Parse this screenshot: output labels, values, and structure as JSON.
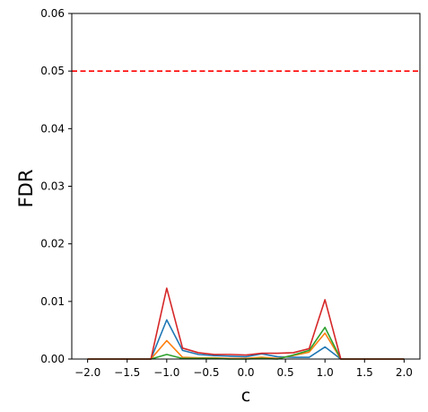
{
  "chart_data": {
    "type": "line",
    "title": "",
    "xlabel": "c",
    "ylabel": "FDR",
    "xlim": [
      -2.2,
      2.2
    ],
    "ylim": [
      0,
      0.06
    ],
    "xticks": [
      -2.0,
      -1.5,
      -1.0,
      -0.5,
      0.0,
      0.5,
      1.0,
      1.5,
      2.0
    ],
    "xtick_labels": [
      "−2.0",
      "−1.5",
      "−1.0",
      "−0.5",
      "0.0",
      "0.5",
      "1.0",
      "1.5",
      "2.0"
    ],
    "yticks": [
      0.0,
      0.01,
      0.02,
      0.03,
      0.04,
      0.05,
      0.06
    ],
    "ytick_labels": [
      "0.00",
      "0.01",
      "0.02",
      "0.03",
      "0.04",
      "0.05",
      "0.06"
    ],
    "grid": false,
    "x": [
      -2.0,
      -1.8,
      -1.6,
      -1.4,
      -1.2,
      -1.0,
      -0.8,
      -0.6,
      -0.4,
      -0.2,
      0.0,
      0.2,
      0.4,
      0.6,
      0.8,
      1.0,
      1.2,
      1.4,
      1.6,
      1.8,
      2.0
    ],
    "series": [
      {
        "color": "#1f77b4",
        "values": [
          0,
          0,
          0,
          0,
          0,
          0.0068,
          0.0015,
          0.0008,
          0.0006,
          0.0005,
          0.0004,
          0.0009,
          0.0004,
          0.0003,
          0.0003,
          0.0021,
          0,
          0,
          0,
          0,
          0
        ]
      },
      {
        "color": "#ff7f0e",
        "values": [
          0,
          0,
          0,
          0,
          0,
          0.0032,
          0.0003,
          0.0002,
          0.0002,
          0.0001,
          0.0001,
          0.0003,
          0.0001,
          0.0006,
          0.0012,
          0.0045,
          0,
          0,
          0,
          0,
          0
        ]
      },
      {
        "color": "#2ca02c",
        "values": [
          0,
          0,
          0,
          0,
          0,
          0.0008,
          0.0001,
          0.0001,
          0.0001,
          0,
          0,
          0.0001,
          0,
          0.0007,
          0.0015,
          0.0055,
          0,
          0,
          0,
          0,
          0
        ]
      },
      {
        "color": "#d62728",
        "values": [
          0,
          0,
          0,
          0,
          0,
          0.0123,
          0.0019,
          0.0011,
          0.0008,
          0.0008,
          0.0007,
          0.001,
          0.001,
          0.0011,
          0.0018,
          0.0103,
          0,
          0,
          0,
          0,
          0
        ]
      }
    ],
    "reference_line": {
      "y": 0.05,
      "color": "#ff0000",
      "style": "dashed"
    }
  }
}
